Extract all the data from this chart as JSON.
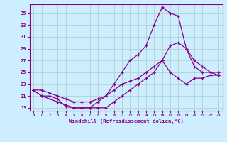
{
  "xlabel": "Windchill (Refroidissement éolien,°C)",
  "bg_color": "#cceeff",
  "line_color": "#880088",
  "grid_color": "#aacccc",
  "series1_x": [
    0,
    1,
    2,
    3,
    4,
    5,
    6,
    7,
    8,
    9,
    10,
    11,
    12,
    13,
    14,
    15,
    16,
    17,
    18,
    19,
    20,
    21,
    22,
    23
  ],
  "series1_y": [
    22,
    21,
    20.5,
    20,
    19.5,
    19,
    19,
    19,
    19,
    19,
    20,
    21,
    22,
    23,
    24,
    25,
    27,
    25,
    24,
    23,
    24,
    24,
    24.5,
    24.5
  ],
  "series2_x": [
    0,
    1,
    2,
    3,
    4,
    5,
    6,
    7,
    8,
    9,
    10,
    11,
    12,
    13,
    14,
    15,
    16,
    17,
    18,
    19,
    20,
    21,
    22,
    23
  ],
  "series2_y": [
    22,
    21,
    21,
    20.5,
    19.2,
    19,
    19,
    19,
    20,
    21,
    23,
    25,
    27,
    28,
    29.5,
    33,
    36,
    35,
    34.5,
    29,
    26,
    25,
    25,
    25
  ],
  "series3_x": [
    0,
    1,
    2,
    3,
    4,
    5,
    6,
    7,
    8,
    9,
    10,
    11,
    12,
    13,
    14,
    15,
    16,
    17,
    18,
    19,
    20,
    21,
    22,
    23
  ],
  "series3_y": [
    22,
    22,
    21.5,
    21,
    20.5,
    20,
    20,
    20,
    20.5,
    21,
    22,
    23,
    23.5,
    24,
    25,
    26,
    27,
    29.5,
    30,
    29,
    27,
    26,
    25,
    24.5
  ],
  "ylim": [
    18.5,
    36.5
  ],
  "xlim": [
    -0.5,
    23.5
  ],
  "yticks": [
    19,
    21,
    23,
    25,
    27,
    29,
    31,
    33,
    35
  ],
  "xticks": [
    0,
    1,
    2,
    3,
    4,
    5,
    6,
    7,
    8,
    9,
    10,
    11,
    12,
    13,
    14,
    15,
    16,
    17,
    18,
    19,
    20,
    21,
    22,
    23
  ]
}
